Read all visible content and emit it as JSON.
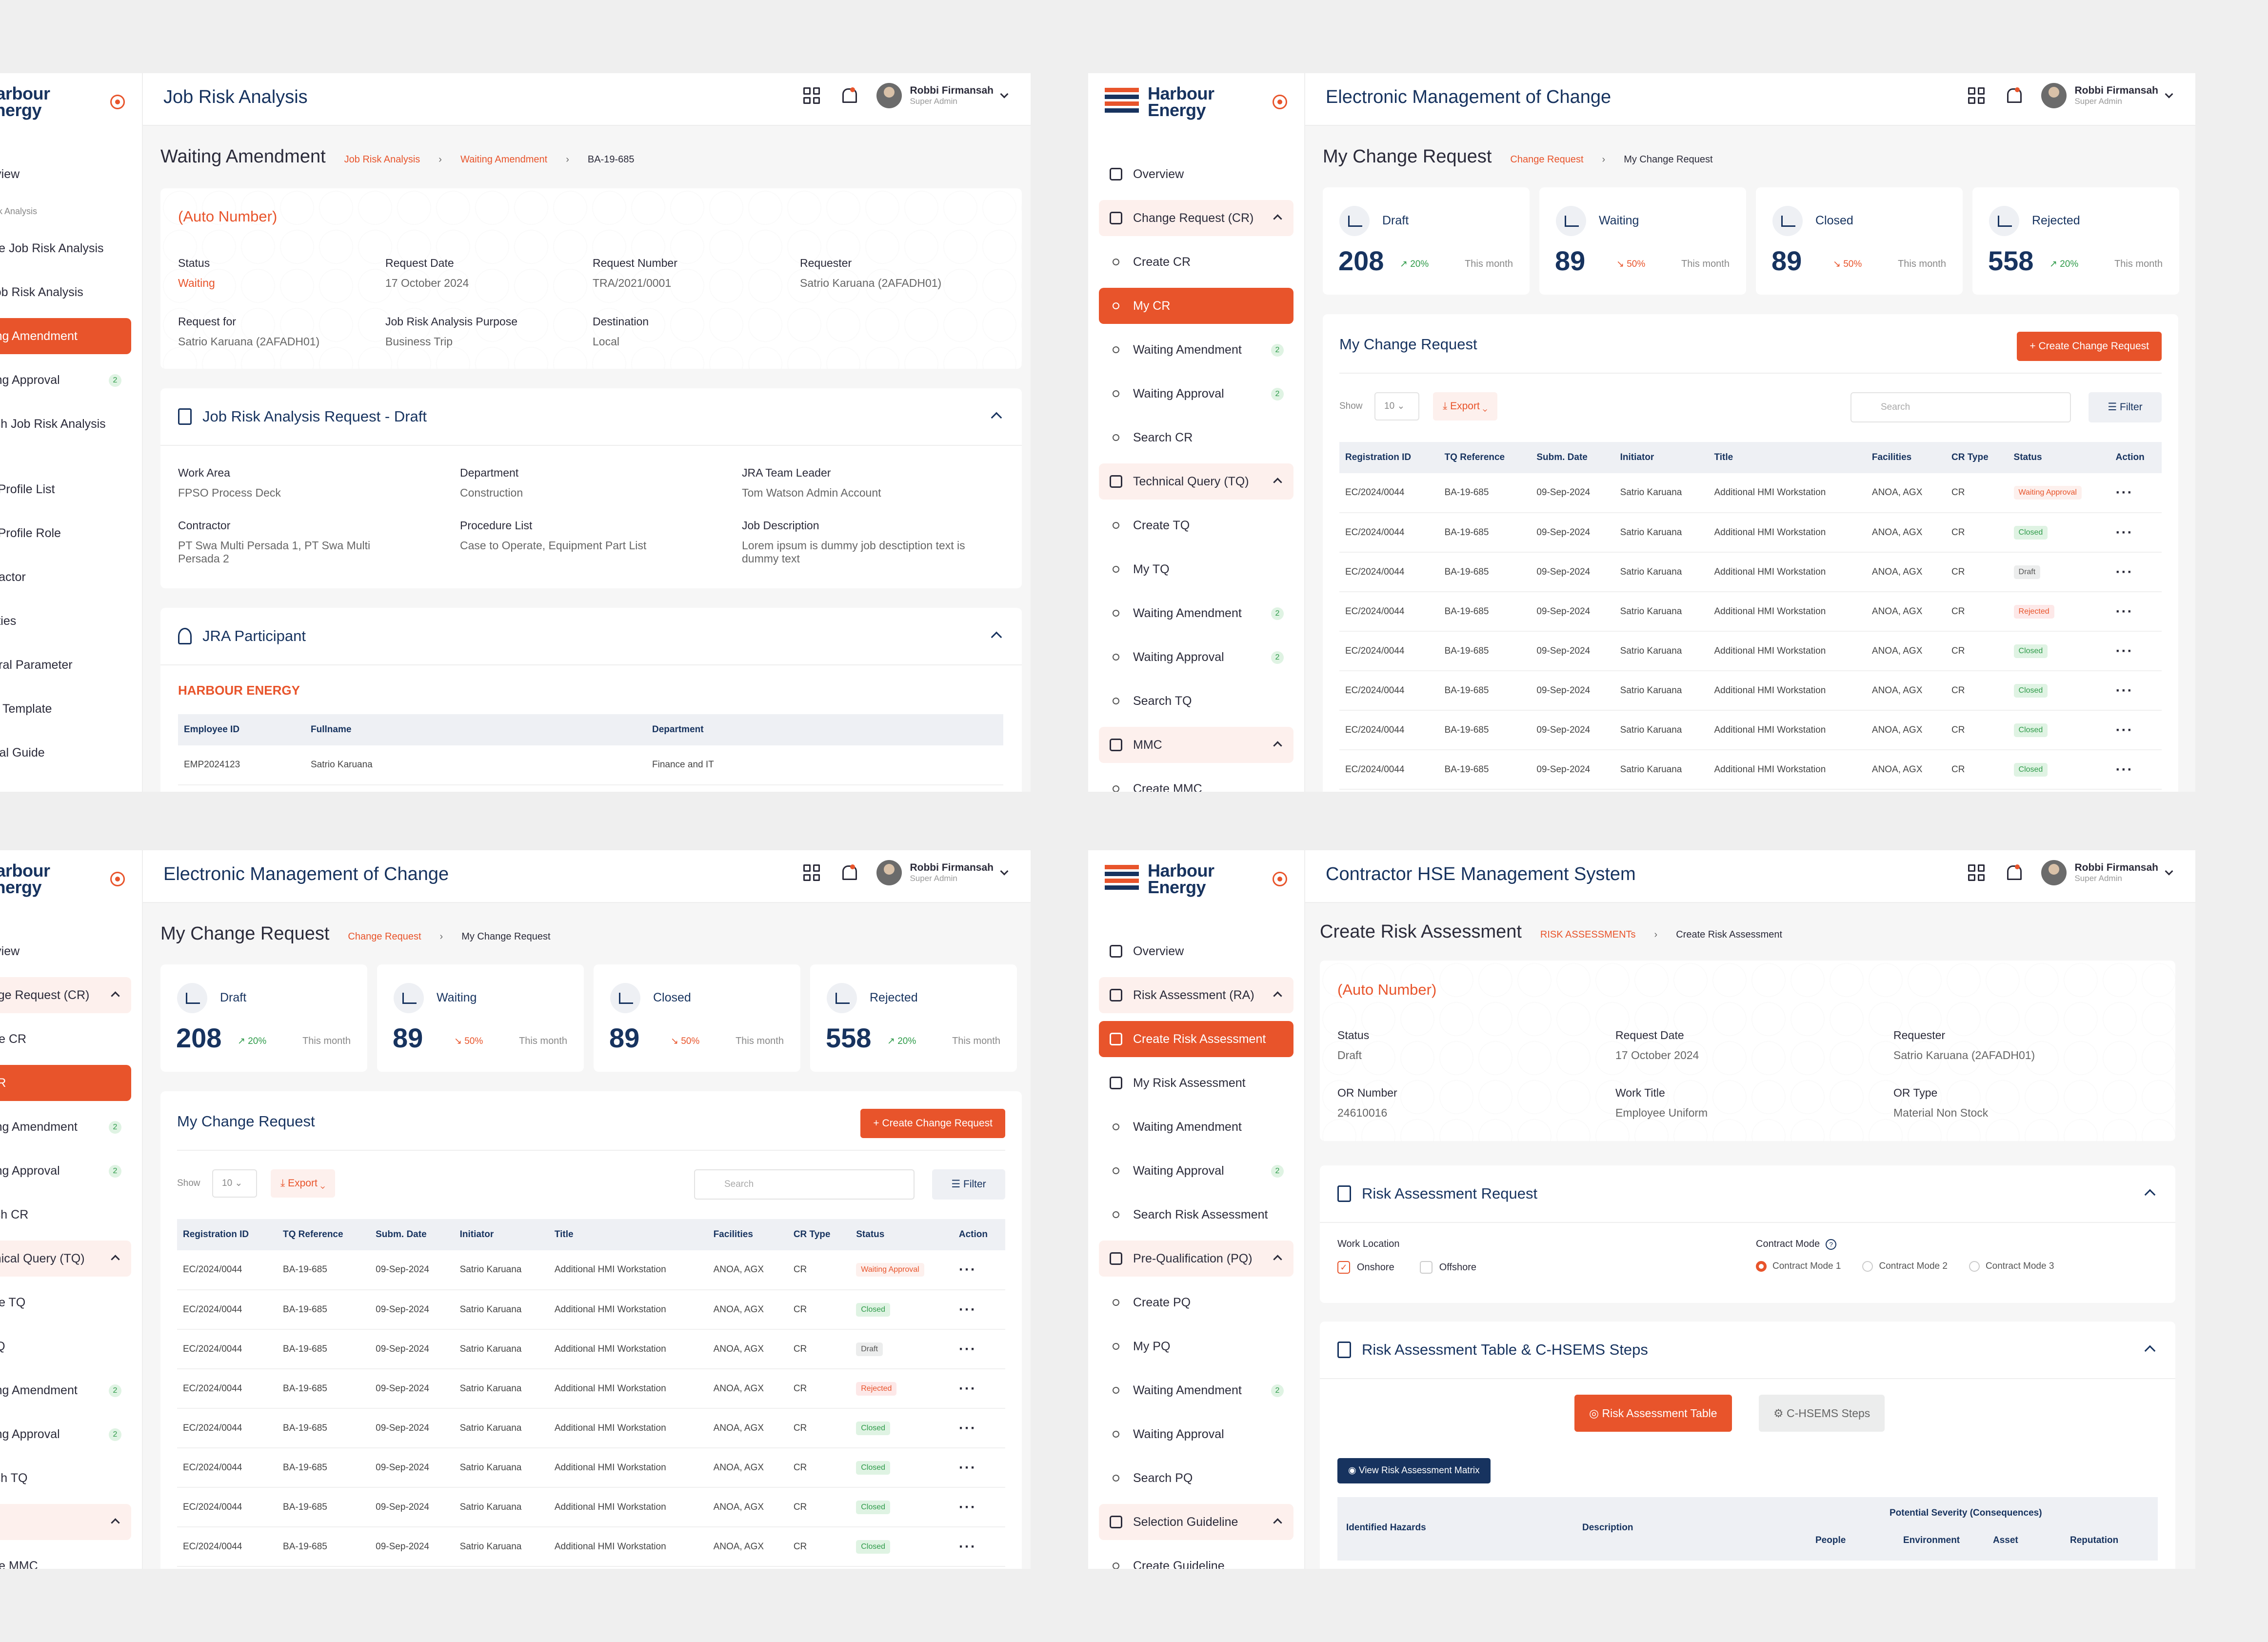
{
  "brand": {
    "line1": "Harbour",
    "line2": "Energy",
    "accent": "#e8542b",
    "navy": "#17335f"
  },
  "user": {
    "name": "Robbi Firmansah",
    "role": "Super Admin"
  },
  "p1": {
    "app_title": "Job Risk Analysis",
    "menu": [
      "Overview",
      "Job Risk Analysis",
      "Create Job Risk Analysis",
      "My Job Risk Analysis",
      "Waiting Amendment",
      "Waiting Approval",
      "Search Job Risk Analysis",
      "User Profile List",
      "User Profile Role",
      "Contractor",
      "Facilities",
      "General Parameter",
      "Email Template",
      "Manual Guide"
    ],
    "badge": "2",
    "page_title": "Waiting Amendment",
    "crumbs": [
      "Job Risk Analysis",
      "Waiting Amendment",
      "BA-19-685"
    ],
    "auto": "(Auto Number)",
    "fields": [
      [
        "Status",
        "Waiting"
      ],
      [
        "Request Date",
        "17 October 2024"
      ],
      [
        "Request Number",
        "TRA/2021/0001"
      ],
      [
        "Requester",
        "Satrio Karuana (2AFADH01)"
      ],
      [
        "Request for",
        "Satrio Karuana (2AFADH01)"
      ],
      [
        "Job Risk Analysis Purpose",
        "Business Trip"
      ],
      [
        "Destination",
        "Local"
      ]
    ],
    "req_title": "Job Risk Analysis Request - Draft",
    "req_fields": [
      [
        "Work Area",
        "FPSO Process Deck"
      ],
      [
        "Department",
        "Construction"
      ],
      [
        "JRA Team Leader",
        "Tom Watson Admin Account"
      ],
      [
        "Contractor",
        "PT Swa Multi Persada 1, PT Swa Multi Persada 2"
      ],
      [
        "Procedure List",
        "Case to Operate, Equipment Part List"
      ],
      [
        "Job Description",
        "Lorem ipsum is dummy job desctiption text is dummy text"
      ]
    ],
    "part_title": "JRA Participant",
    "company": "HARBOUR ENERGY",
    "part_cols": [
      "Employee ID",
      "Fullname",
      "Department"
    ],
    "part_row": [
      "EMP2024123",
      "Satrio Karuana",
      "Finance and IT"
    ]
  },
  "emoc": {
    "app_title": "Electronic Management of Change",
    "menu": {
      "overview": "Overview",
      "cr": "Change Request (CR)",
      "create_cr": "Create CR",
      "my_cr": "My CR",
      "wa": "Waiting Amendment",
      "wap": "Waiting Approval",
      "search_cr": "Search CR",
      "tq": "Technical Query (TQ)",
      "create_tq": "Create TQ",
      "my_tq": "My TQ",
      "search_tq": "Search TQ",
      "mmc": "MMC",
      "create_mmc": "Create MMC",
      "badge": "2"
    },
    "page_title": "My Change Request",
    "crumbs": [
      "Change Request",
      "My Change Request"
    ],
    "stats": [
      {
        "name": "Draft",
        "value": "208",
        "change": "20%",
        "dir": "up",
        "period": "This month"
      },
      {
        "name": "Waiting",
        "value": "89",
        "change": "50%",
        "dir": "down",
        "period": "This month"
      },
      {
        "name": "Closed",
        "value": "89",
        "change": "50%",
        "dir": "down",
        "period": "This month"
      },
      {
        "name": "Rejected",
        "value": "558",
        "change": "20%",
        "dir": "up",
        "period": "This month"
      }
    ],
    "table_title": "My Change Request",
    "create_btn": "Create Change Request",
    "show": "Show",
    "show_val": "10",
    "export": "Export",
    "search": "Search",
    "filter": "Filter",
    "cols": [
      "Registration ID",
      "TQ Reference",
      "Subm. Date",
      "Initiator",
      "Title",
      "Facilities",
      "CR Type",
      "Status",
      "Action"
    ],
    "rows": [
      [
        "EC/2024/0044",
        "BA-19-685",
        "09-Sep-2024",
        "Satrio Karuana",
        "Additional HMI Workstation",
        "ANOA, AGX",
        "CR",
        "Waiting Approval"
      ],
      [
        "EC/2024/0044",
        "BA-19-685",
        "09-Sep-2024",
        "Satrio Karuana",
        "Additional HMI Workstation",
        "ANOA, AGX",
        "CR",
        "Closed"
      ],
      [
        "EC/2024/0044",
        "BA-19-685",
        "09-Sep-2024",
        "Satrio Karuana",
        "Additional HMI Workstation",
        "ANOA, AGX",
        "CR",
        "Draft"
      ],
      [
        "EC/2024/0044",
        "BA-19-685",
        "09-Sep-2024",
        "Satrio Karuana",
        "Additional HMI Workstation",
        "ANOA, AGX",
        "CR",
        "Rejected"
      ],
      [
        "EC/2024/0044",
        "BA-19-685",
        "09-Sep-2024",
        "Satrio Karuana",
        "Additional HMI Workstation",
        "ANOA, AGX",
        "CR",
        "Closed"
      ],
      [
        "EC/2024/0044",
        "BA-19-685",
        "09-Sep-2024",
        "Satrio Karuana",
        "Additional HMI Workstation",
        "ANOA, AGX",
        "CR",
        "Closed"
      ],
      [
        "EC/2024/0044",
        "BA-19-685",
        "09-Sep-2024",
        "Satrio Karuana",
        "Additional HMI Workstation",
        "ANOA, AGX",
        "CR",
        "Closed"
      ],
      [
        "EC/2024/0044",
        "BA-19-685",
        "09-Sep-2024",
        "Satrio Karuana",
        "Additional HMI Workstation",
        "ANOA, AGX",
        "CR",
        "Closed"
      ]
    ]
  },
  "p4": {
    "app_title": "Contractor HSE Management System",
    "menu": [
      "Overview",
      "Risk Assessment (RA)",
      "Create Risk Assessment",
      "My Risk Assessment",
      "Waiting Amendment",
      "Waiting Approval",
      "Search Risk Assessment",
      "Pre-Qualification (PQ)",
      "Create PQ",
      "My PQ",
      "Waiting Amendment",
      "Waiting Approval",
      "Search PQ",
      "Selection Guideline",
      "Create Guideline"
    ],
    "badge": "2",
    "page_title": "Create Risk Assessment",
    "crumbs": [
      "RISK ASSESSMENTs",
      "Create Risk Assessment"
    ],
    "auto": "(Auto Number)",
    "fields": [
      [
        "Status",
        "Draft"
      ],
      [
        "Request Date",
        "17 October 2024"
      ],
      [
        "Requester",
        "Satrio Karuana (2AFADH01)"
      ],
      [
        "OR Number",
        "24610016"
      ],
      [
        "Work Title",
        "Employee Uniform"
      ],
      [
        "OR Type",
        "Material Non Stock"
      ]
    ],
    "req_title": "Risk Assessment Request",
    "work_location": "Work Location",
    "loc_opts": [
      "Onshore",
      "Offshore"
    ],
    "contract_mode": "Contract Mode",
    "mode_opts": [
      "Contract Mode 1",
      "Contract Mode 2",
      "Contract Mode 3"
    ],
    "table_title": "Risk Assessment Table & C-HSEMS Steps",
    "tab1": "Risk Assessment Table",
    "tab2": "C-HSEMS Steps",
    "matrix_btn": "View Risk Assessment Matrix",
    "cols": {
      "hazards": "Identified Hazards",
      "desc": "Description",
      "sev": "Potential Severity (Consequences)",
      "people": "People",
      "env": "Environment",
      "asset": "Asset",
      "rep": "Reputation"
    }
  }
}
